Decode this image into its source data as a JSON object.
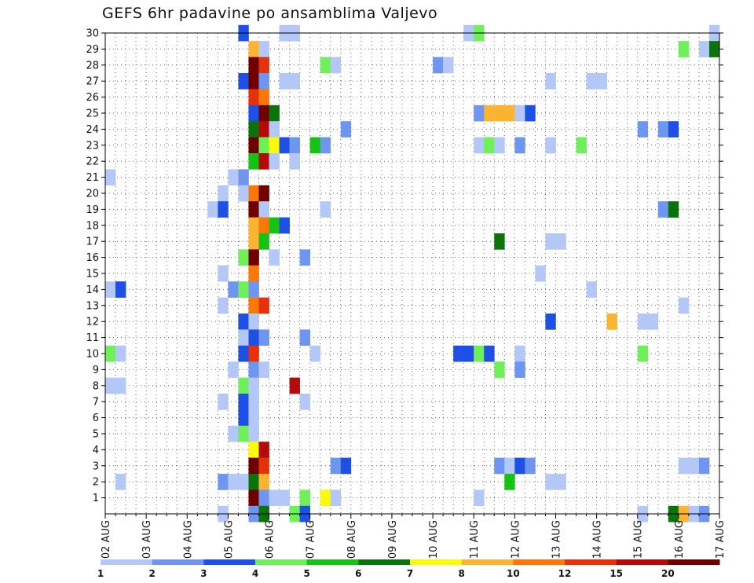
{
  "chart_data": {
    "type": "heatmap",
    "title": "GEFS 6hr padavine po ansamblima Valjevo",
    "x_tick_labels": [
      "02 AUG",
      "03 AUG",
      "04 AUG",
      "05 AUG",
      "06 AUG",
      "07 AUG",
      "08 AUG",
      "09 AUG",
      "10 AUG",
      "11 AUG",
      "12 AUG",
      "13 AUG",
      "14 AUG",
      "15 AUG",
      "16 AUG",
      "17 AUG"
    ],
    "y_tick_labels": [
      "1",
      "2",
      "3",
      "4",
      "5",
      "6",
      "7",
      "8",
      "9",
      "10",
      "11",
      "12",
      "13",
      "14",
      "15",
      "16",
      "17",
      "18",
      "19",
      "20",
      "21",
      "22",
      "23",
      "24",
      "25",
      "26",
      "27",
      "28",
      "29",
      "30"
    ],
    "x_range_6h_steps": [
      0,
      60
    ],
    "y_range_members": [
      0,
      30
    ],
    "grid": true,
    "legend": {
      "placement": "bottom",
      "labels": [
        "1",
        "2",
        "3",
        "4",
        "5",
        "6",
        "7",
        "8",
        "10",
        "12",
        "15",
        "20"
      ],
      "colors": [
        "#b4c8f8",
        "#6e96f0",
        "#1e50e6",
        "#6ef05a",
        "#14c314",
        "#0a730a",
        "#fafa0a",
        "#fab432",
        "#fa780a",
        "#e6320a",
        "#b40a0a",
        "#6e0000"
      ]
    },
    "cells_format": "[member, time_step, color_class]",
    "cells": [
      [
        30,
        13,
        2
      ],
      [
        30,
        17,
        0
      ],
      [
        30,
        18,
        0
      ],
      [
        30,
        35,
        0
      ],
      [
        30,
        36,
        3
      ],
      [
        30,
        59,
        0
      ],
      [
        29,
        14,
        7
      ],
      [
        29,
        15,
        0
      ],
      [
        29,
        56,
        3
      ],
      [
        29,
        58,
        0
      ],
      [
        29,
        59,
        5
      ],
      [
        28,
        14,
        11
      ],
      [
        28,
        15,
        9
      ],
      [
        28,
        21,
        3
      ],
      [
        28,
        22,
        0
      ],
      [
        28,
        32,
        1
      ],
      [
        28,
        33,
        0
      ],
      [
        27,
        13,
        2
      ],
      [
        27,
        14,
        11
      ],
      [
        27,
        15,
        1
      ],
      [
        27,
        17,
        0
      ],
      [
        27,
        18,
        0
      ],
      [
        27,
        43,
        0
      ],
      [
        27,
        47,
        0
      ],
      [
        27,
        48,
        0
      ],
      [
        26,
        14,
        9
      ],
      [
        26,
        15,
        8
      ],
      [
        25,
        14,
        2
      ],
      [
        25,
        15,
        11
      ],
      [
        25,
        16,
        5
      ],
      [
        25,
        36,
        1
      ],
      [
        25,
        37,
        7
      ],
      [
        25,
        38,
        7
      ],
      [
        25,
        39,
        7
      ],
      [
        25,
        40,
        0
      ],
      [
        25,
        41,
        2
      ],
      [
        24,
        14,
        5
      ],
      [
        24,
        15,
        10
      ],
      [
        24,
        16,
        0
      ],
      [
        24,
        23,
        1
      ],
      [
        24,
        52,
        1
      ],
      [
        24,
        54,
        1
      ],
      [
        24,
        55,
        2
      ],
      [
        23,
        14,
        11
      ],
      [
        23,
        15,
        3
      ],
      [
        23,
        16,
        6
      ],
      [
        23,
        17,
        2
      ],
      [
        23,
        18,
        1
      ],
      [
        23,
        20,
        4
      ],
      [
        23,
        21,
        1
      ],
      [
        23,
        36,
        0
      ],
      [
        23,
        37,
        3
      ],
      [
        23,
        38,
        0
      ],
      [
        23,
        40,
        1
      ],
      [
        23,
        43,
        0
      ],
      [
        23,
        46,
        3
      ],
      [
        22,
        14,
        4
      ],
      [
        22,
        15,
        10
      ],
      [
        22,
        16,
        0
      ],
      [
        22,
        18,
        0
      ],
      [
        21,
        0,
        0
      ],
      [
        21,
        12,
        0
      ],
      [
        21,
        13,
        1
      ],
      [
        20,
        11,
        0
      ],
      [
        20,
        13,
        0
      ],
      [
        20,
        14,
        8
      ],
      [
        20,
        15,
        11
      ],
      [
        19,
        10,
        0
      ],
      [
        19,
        11,
        2
      ],
      [
        19,
        14,
        11
      ],
      [
        19,
        15,
        0
      ],
      [
        19,
        21,
        0
      ],
      [
        19,
        54,
        1
      ],
      [
        19,
        55,
        5
      ],
      [
        18,
        14,
        7
      ],
      [
        18,
        15,
        8
      ],
      [
        18,
        16,
        4
      ],
      [
        18,
        17,
        2
      ],
      [
        17,
        14,
        7
      ],
      [
        17,
        15,
        4
      ],
      [
        17,
        38,
        5
      ],
      [
        17,
        43,
        0
      ],
      [
        17,
        44,
        0
      ],
      [
        16,
        13,
        3
      ],
      [
        16,
        14,
        11
      ],
      [
        16,
        16,
        0
      ],
      [
        16,
        19,
        1
      ],
      [
        15,
        11,
        0
      ],
      [
        15,
        14,
        8
      ],
      [
        15,
        42,
        0
      ],
      [
        14,
        0,
        0
      ],
      [
        14,
        1,
        2
      ],
      [
        14,
        12,
        1
      ],
      [
        14,
        13,
        3
      ],
      [
        14,
        14,
        1
      ],
      [
        14,
        47,
        0
      ],
      [
        13,
        11,
        0
      ],
      [
        13,
        14,
        8
      ],
      [
        13,
        15,
        9
      ],
      [
        13,
        56,
        0
      ],
      [
        12,
        13,
        2
      ],
      [
        12,
        14,
        0
      ],
      [
        12,
        43,
        2
      ],
      [
        12,
        49,
        7
      ],
      [
        12,
        52,
        0
      ],
      [
        12,
        53,
        0
      ],
      [
        11,
        13,
        0
      ],
      [
        11,
        14,
        2
      ],
      [
        11,
        15,
        1
      ],
      [
        11,
        19,
        1
      ],
      [
        10,
        0,
        3
      ],
      [
        10,
        1,
        0
      ],
      [
        10,
        13,
        2
      ],
      [
        10,
        14,
        9
      ],
      [
        10,
        20,
        0
      ],
      [
        10,
        34,
        2
      ],
      [
        10,
        35,
        2
      ],
      [
        10,
        36,
        3
      ],
      [
        10,
        37,
        2
      ],
      [
        10,
        40,
        0
      ],
      [
        10,
        52,
        3
      ],
      [
        9,
        12,
        0
      ],
      [
        9,
        14,
        1
      ],
      [
        9,
        15,
        0
      ],
      [
        9,
        38,
        3
      ],
      [
        9,
        40,
        1
      ],
      [
        8,
        0,
        0
      ],
      [
        8,
        1,
        0
      ],
      [
        8,
        13,
        3
      ],
      [
        8,
        14,
        0
      ],
      [
        8,
        18,
        10
      ],
      [
        7,
        11,
        0
      ],
      [
        7,
        13,
        2
      ],
      [
        7,
        14,
        0
      ],
      [
        7,
        19,
        0
      ],
      [
        6,
        13,
        2
      ],
      [
        6,
        14,
        0
      ],
      [
        5,
        12,
        0
      ],
      [
        5,
        13,
        3
      ],
      [
        5,
        14,
        0
      ],
      [
        4,
        14,
        6
      ],
      [
        4,
        15,
        10
      ],
      [
        3,
        14,
        11
      ],
      [
        3,
        15,
        9
      ],
      [
        3,
        22,
        1
      ],
      [
        3,
        23,
        2
      ],
      [
        3,
        38,
        1
      ],
      [
        3,
        39,
        0
      ],
      [
        3,
        40,
        2
      ],
      [
        3,
        41,
        1
      ],
      [
        3,
        56,
        0
      ],
      [
        3,
        57,
        0
      ],
      [
        3,
        58,
        1
      ],
      [
        2,
        1,
        0
      ],
      [
        2,
        11,
        1
      ],
      [
        2,
        12,
        0
      ],
      [
        2,
        13,
        0
      ],
      [
        2,
        14,
        5
      ],
      [
        2,
        15,
        7
      ],
      [
        2,
        39,
        4
      ],
      [
        2,
        43,
        0
      ],
      [
        2,
        44,
        0
      ],
      [
        1,
        14,
        11
      ],
      [
        1,
        15,
        1
      ],
      [
        1,
        16,
        0
      ],
      [
        1,
        17,
        0
      ],
      [
        1,
        19,
        3
      ],
      [
        1,
        21,
        6
      ],
      [
        1,
        22,
        0
      ],
      [
        1,
        36,
        0
      ],
      [
        0,
        11,
        0
      ],
      [
        0,
        14,
        1
      ],
      [
        0,
        15,
        5
      ],
      [
        0,
        18,
        3
      ],
      [
        0,
        19,
        2
      ],
      [
        0,
        52,
        0
      ],
      [
        0,
        55,
        5
      ],
      [
        0,
        56,
        7
      ],
      [
        0,
        57,
        0
      ],
      [
        0,
        58,
        1
      ]
    ]
  }
}
